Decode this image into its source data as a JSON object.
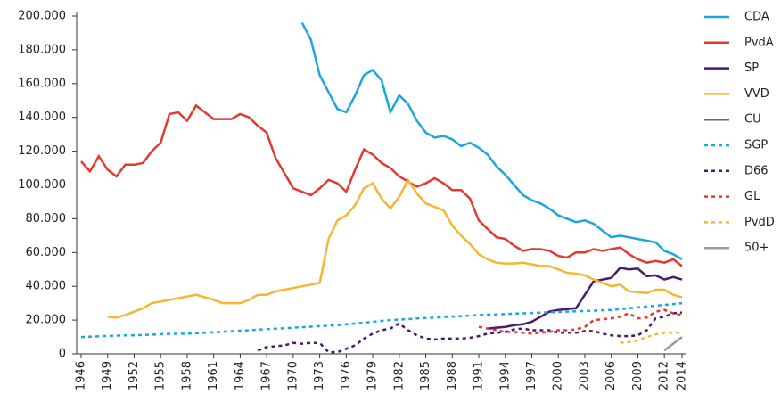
{
  "chart_data": {
    "type": "line",
    "x": [
      1946,
      1947,
      1948,
      1949,
      1950,
      1951,
      1952,
      1953,
      1954,
      1955,
      1956,
      1957,
      1958,
      1959,
      1960,
      1961,
      1962,
      1963,
      1964,
      1965,
      1966,
      1967,
      1968,
      1969,
      1970,
      1971,
      1972,
      1973,
      1974,
      1975,
      1976,
      1977,
      1978,
      1979,
      1980,
      1981,
      1982,
      1983,
      1984,
      1985,
      1986,
      1987,
      1988,
      1989,
      1990,
      1991,
      1992,
      1993,
      1994,
      1995,
      1996,
      1997,
      1998,
      1999,
      2000,
      2001,
      2002,
      2003,
      2004,
      2005,
      2006,
      2007,
      2008,
      2009,
      2010,
      2011,
      2012,
      2013,
      2014
    ],
    "xlim": [
      1946,
      2014
    ],
    "xticks": [
      1946,
      1949,
      1952,
      1955,
      1958,
      1961,
      1964,
      1967,
      1970,
      1973,
      1976,
      1979,
      1982,
      1985,
      1988,
      1991,
      1994,
      1997,
      2000,
      2003,
      2006,
      2009,
      2012,
      2014
    ],
    "ylim": [
      0,
      200000
    ],
    "yticks": [
      0,
      {
        "value": 20000,
        "label": "20.000"
      },
      {
        "value": 40000,
        "label": "40.000"
      },
      {
        "value": 60000,
        "label": "60.000"
      },
      {
        "value": 80000,
        "label": "80.000"
      },
      {
        "value": 100000,
        "label": "100.000"
      },
      {
        "value": 120000,
        "label": "120.000"
      },
      {
        "value": 140000,
        "label": "140.000"
      },
      {
        "value": 160000,
        "label": "160.000"
      },
      {
        "value": 180000,
        "label": "180.000"
      },
      {
        "value": 200000,
        "label": "200.000"
      }
    ],
    "grid": false,
    "legend": "right",
    "series": [
      {
        "name": "CDA",
        "color": "#1ba6df",
        "dash": false,
        "values": [
          null,
          null,
          null,
          null,
          null,
          null,
          null,
          null,
          null,
          null,
          null,
          null,
          null,
          null,
          null,
          null,
          null,
          null,
          null,
          null,
          null,
          null,
          null,
          null,
          null,
          196000,
          186000,
          165000,
          155000,
          145000,
          143000,
          153000,
          165000,
          168000,
          162000,
          143000,
          153000,
          148000,
          138000,
          131000,
          128000,
          129000,
          127000,
          123000,
          125000,
          122000,
          118000,
          111000,
          106000,
          100000,
          94000,
          91000,
          89000,
          86000,
          82000,
          80000,
          78000,
          79000,
          77000,
          73000,
          69000,
          70000,
          69000,
          68000,
          67000,
          66000,
          61000,
          59000,
          56000
        ]
      },
      {
        "name": "PvdA",
        "color": "#e13b30",
        "dash": false,
        "values": [
          114000,
          108000,
          117000,
          109000,
          105000,
          112000,
          112000,
          113000,
          120000,
          125000,
          142000,
          143000,
          138000,
          147000,
          143000,
          139000,
          139000,
          139000,
          142000,
          140000,
          135000,
          131000,
          116000,
          107000,
          98000,
          96000,
          94000,
          98000,
          103000,
          101000,
          96000,
          109000,
          121000,
          118000,
          113000,
          110000,
          105000,
          102000,
          99000,
          101000,
          104000,
          101000,
          97000,
          97000,
          92000,
          79000,
          74000,
          69000,
          68000,
          64000,
          61000,
          62000,
          62000,
          61000,
          58000,
          57000,
          60000,
          60000,
          62000,
          61000,
          62000,
          63000,
          59000,
          56000,
          54000,
          55000,
          54000,
          56000,
          52000
        ]
      },
      {
        "name": "SP",
        "color": "#4b1b6b",
        "dash": false,
        "values": [
          null,
          null,
          null,
          null,
          null,
          null,
          null,
          null,
          null,
          null,
          null,
          null,
          null,
          null,
          null,
          null,
          null,
          null,
          null,
          null,
          null,
          null,
          null,
          null,
          null,
          null,
          null,
          null,
          null,
          null,
          null,
          null,
          null,
          null,
          null,
          null,
          null,
          null,
          null,
          null,
          null,
          null,
          null,
          null,
          null,
          null,
          15000,
          15500,
          16000,
          17000,
          17500,
          19000,
          22000,
          25000,
          26000,
          26500,
          27000,
          35000,
          43000,
          44000,
          45000,
          51000,
          50000,
          50500,
          46000,
          46500,
          44000,
          45500,
          44000
        ]
      },
      {
        "name": "VVD",
        "color": "#f6b632",
        "dash": false,
        "values": [
          null,
          null,
          null,
          22000,
          21500,
          23000,
          25000,
          27000,
          30000,
          31000,
          32000,
          33000,
          34000,
          35000,
          33500,
          32000,
          30000,
          30000,
          30000,
          32000,
          35000,
          35000,
          37000,
          38000,
          39000,
          40000,
          41000,
          42000,
          68000,
          79000,
          82000,
          88000,
          98000,
          101000,
          92000,
          86000,
          93000,
          103000,
          95000,
          89000,
          87000,
          85000,
          76000,
          70000,
          65000,
          59000,
          56000,
          54000,
          53500,
          53500,
          54000,
          53000,
          52000,
          52000,
          50000,
          48000,
          47500,
          46500,
          44000,
          42000,
          40000,
          41000,
          37000,
          36500,
          36000,
          38000,
          38000,
          35000,
          33500
        ]
      },
      {
        "name": "CU",
        "color": "#666666",
        "dash": false,
        "values": [
          null,
          null,
          null,
          null,
          null,
          null,
          null,
          null,
          null,
          null,
          null,
          null,
          null,
          null,
          null,
          null,
          null,
          null,
          null,
          null,
          null,
          null,
          null,
          null,
          null,
          null,
          null,
          null,
          null,
          null,
          null,
          null,
          null,
          null,
          null,
          null,
          null,
          null,
          null,
          null,
          null,
          null,
          null,
          null,
          null,
          null,
          null,
          null,
          null,
          null,
          null,
          null,
          null,
          null,
          null,
          null,
          null,
          null,
          null,
          null,
          null,
          null,
          null,
          null,
          null,
          null,
          null,
          null,
          null
        ]
      },
      {
        "name": "SGP",
        "color": "#1ba6df",
        "dash": true,
        "values": [
          10000,
          10200,
          10400,
          10600,
          10800,
          11000,
          11000,
          11200,
          11400,
          11600,
          11800,
          11900,
          12000,
          12200,
          12500,
          12800,
          13100,
          13400,
          13700,
          14000,
          14300,
          14600,
          14900,
          15200,
          15500,
          15800,
          16100,
          16400,
          16700,
          17000,
          17500,
          18000,
          18500,
          19000,
          19500,
          20000,
          20300,
          20600,
          21000,
          21200,
          21500,
          21800,
          22100,
          22400,
          22700,
          23000,
          23200,
          23400,
          23600,
          23800,
          24000,
          24200,
          24400,
          24600,
          24800,
          25000,
          25200,
          25400,
          25600,
          25800,
          26000,
          26500,
          27000,
          27500,
          28000,
          28500,
          29000,
          29500,
          30000
        ]
      },
      {
        "name": "D66",
        "color": "#4b1b6b",
        "dash": true,
        "values": [
          null,
          null,
          null,
          null,
          null,
          null,
          null,
          null,
          null,
          null,
          null,
          null,
          null,
          null,
          null,
          null,
          null,
          null,
          null,
          null,
          2000,
          4000,
          4500,
          5000,
          6500,
          6000,
          6500,
          6500,
          1000,
          1000,
          3000,
          5000,
          9000,
          12000,
          14000,
          15000,
          18000,
          14000,
          11000,
          9000,
          8500,
          9000,
          9000,
          9000,
          9500,
          10500,
          12000,
          12500,
          13000,
          14500,
          15000,
          14000,
          14000,
          14000,
          12500,
          12500,
          12500,
          13500,
          13500,
          12000,
          11000,
          10500,
          10500,
          11000,
          14000,
          21000,
          22000,
          24000,
          24500
        ]
      },
      {
        "name": "GL",
        "color": "#e13b30",
        "dash": true,
        "values": [
          null,
          null,
          null,
          null,
          null,
          null,
          null,
          null,
          null,
          null,
          null,
          null,
          null,
          null,
          null,
          null,
          null,
          null,
          null,
          null,
          null,
          null,
          null,
          null,
          null,
          null,
          null,
          null,
          null,
          null,
          null,
          null,
          null,
          null,
          null,
          null,
          null,
          null,
          null,
          null,
          null,
          null,
          null,
          null,
          null,
          16000,
          15000,
          14000,
          13000,
          13000,
          12500,
          12000,
          12500,
          13000,
          14000,
          14000,
          14500,
          16000,
          20000,
          20500,
          21000,
          22000,
          24000,
          21000,
          21500,
          25000,
          26000,
          24000,
          23000
        ]
      },
      {
        "name": "PvdD",
        "color": "#f6b632",
        "dash": true,
        "values": [
          null,
          null,
          null,
          null,
          null,
          null,
          null,
          null,
          null,
          null,
          null,
          null,
          null,
          null,
          null,
          null,
          null,
          null,
          null,
          null,
          null,
          null,
          null,
          null,
          null,
          null,
          null,
          null,
          null,
          null,
          null,
          null,
          null,
          null,
          null,
          null,
          null,
          null,
          null,
          null,
          null,
          null,
          null,
          null,
          null,
          null,
          null,
          null,
          null,
          null,
          null,
          null,
          null,
          null,
          null,
          null,
          null,
          null,
          null,
          null,
          null,
          6500,
          7000,
          8000,
          10000,
          11500,
          12500,
          12500,
          12500
        ]
      },
      {
        "name": "50+",
        "color": "#9a9a9a",
        "dash": false,
        "values": [
          null,
          null,
          null,
          null,
          null,
          null,
          null,
          null,
          null,
          null,
          null,
          null,
          null,
          null,
          null,
          null,
          null,
          null,
          null,
          null,
          null,
          null,
          null,
          null,
          null,
          null,
          null,
          null,
          null,
          null,
          null,
          null,
          null,
          null,
          null,
          null,
          null,
          null,
          null,
          null,
          null,
          null,
          null,
          null,
          null,
          null,
          null,
          null,
          null,
          null,
          null,
          null,
          null,
          null,
          null,
          null,
          null,
          null,
          null,
          null,
          null,
          null,
          null,
          null,
          null,
          null,
          2000,
          6000,
          10000
        ]
      }
    ]
  }
}
